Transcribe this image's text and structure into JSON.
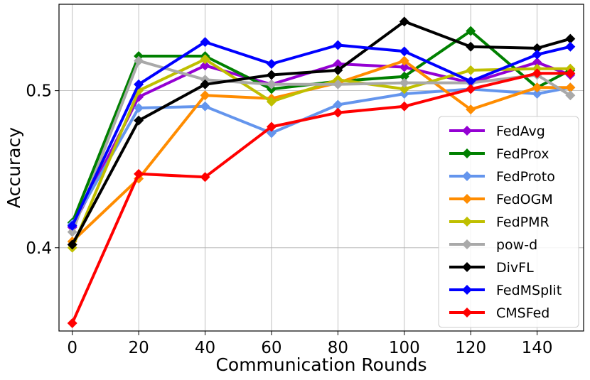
{
  "chart_data": {
    "type": "line",
    "xlabel": "Communication Rounds",
    "ylabel": "Accuracy",
    "x": [
      0,
      20,
      40,
      60,
      80,
      100,
      120,
      140,
      150
    ],
    "xlim": [
      -4,
      154
    ],
    "ylim": [
      0.347,
      0.555
    ],
    "xticks": [
      0,
      20,
      40,
      60,
      80,
      100,
      120,
      140
    ],
    "xtick_labels": [
      "0",
      "20",
      "40",
      "60",
      "80",
      "100",
      "120",
      "140"
    ],
    "yticks": [
      0.4,
      0.5
    ],
    "ytick_labels": [
      "0.4",
      "0.5"
    ],
    "grid": true,
    "legend_position": "lower-right",
    "series": [
      {
        "name": "FedAvg",
        "color": "#9400d3",
        "values": [
          0.413,
          0.496,
          0.516,
          0.504,
          0.517,
          0.515,
          0.505,
          0.518,
          0.51
        ]
      },
      {
        "name": "FedProx",
        "color": "#008000",
        "values": [
          0.416,
          0.522,
          0.522,
          0.501,
          0.506,
          0.509,
          0.538,
          0.502,
          0.513
        ]
      },
      {
        "name": "FedProto",
        "color": "#6495ed",
        "values": [
          0.415,
          0.489,
          0.49,
          0.473,
          0.491,
          0.498,
          0.501,
          0.498,
          0.502
        ]
      },
      {
        "name": "FedOGM",
        "color": "#ff8c00",
        "values": [
          0.404,
          0.444,
          0.497,
          0.495,
          0.505,
          0.519,
          0.488,
          0.502,
          0.502
        ]
      },
      {
        "name": "FedPMR",
        "color": "#bfbf00",
        "values": [
          0.4,
          0.5,
          0.52,
          0.493,
          0.507,
          0.501,
          0.513,
          0.514,
          0.514
        ]
      },
      {
        "name": "pow-d",
        "color": "#a9a9a9",
        "values": [
          0.41,
          0.519,
          0.507,
          0.504,
          0.504,
          0.505,
          0.505,
          0.51,
          0.497
        ]
      },
      {
        "name": "DivFL",
        "color": "#000000",
        "values": [
          0.402,
          0.481,
          0.504,
          0.51,
          0.513,
          0.544,
          0.528,
          0.527,
          0.533
        ]
      },
      {
        "name": "FedMSplit",
        "color": "#0000ff",
        "values": [
          0.414,
          0.504,
          0.531,
          0.517,
          0.529,
          0.525,
          0.506,
          0.523,
          0.528
        ]
      },
      {
        "name": "CMSFed",
        "color": "#ff0000",
        "values": [
          0.352,
          0.447,
          0.445,
          0.477,
          0.486,
          0.49,
          0.501,
          0.511,
          0.511
        ]
      }
    ]
  }
}
